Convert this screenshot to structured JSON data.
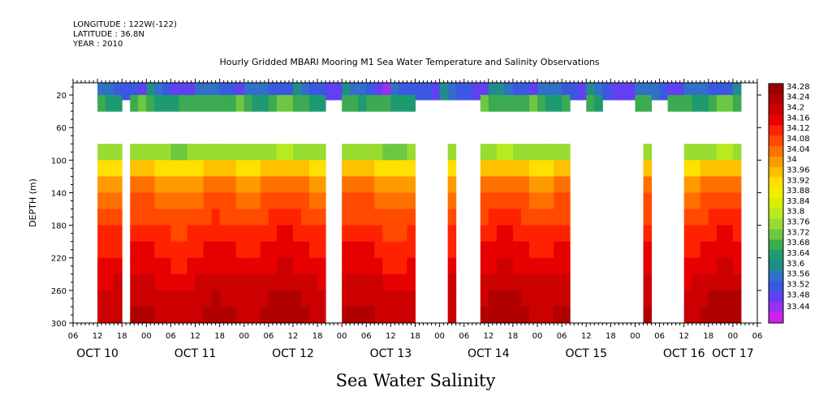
{
  "header": {
    "longitude": "LONGITUDE : 122W(-122)",
    "latitude": "LATITUDE : 36.8N",
    "year": "YEAR : 2010"
  },
  "chart_data": {
    "type": "heatmap",
    "title": "Hourly Gridded MBARI Mooring M1 Sea Water Temperature and Salinity Observations",
    "xlabel": "Sea Water Salinity",
    "ylabel": "DEPTH (m)",
    "x_start_hour": 6,
    "x_end_hour": 174,
    "x_tick_labels": [
      "06",
      "12",
      "18",
      "00",
      "06",
      "12",
      "18",
      "00",
      "06",
      "12",
      "18",
      "00",
      "06",
      "12",
      "18",
      "00",
      "06",
      "12",
      "18",
      "00",
      "06",
      "12",
      "18",
      "00",
      "06",
      "12",
      "18",
      "00",
      "06"
    ],
    "date_labels": [
      {
        "label": "OCT 10",
        "hour": 12
      },
      {
        "label": "OCT 11",
        "hour": 36
      },
      {
        "label": "OCT 12",
        "hour": 60
      },
      {
        "label": "OCT 13",
        "hour": 84
      },
      {
        "label": "OCT 14",
        "hour": 108
      },
      {
        "label": "OCT 15",
        "hour": 132
      },
      {
        "label": "OCT 16",
        "hour": 156
      },
      {
        "label": "OCT 17",
        "hour": 168
      }
    ],
    "y_ticks": [
      20,
      60,
      100,
      140,
      180,
      220,
      260,
      300
    ],
    "ylim": [
      300,
      5
    ],
    "depth_levels": [
      10,
      30,
      90,
      110,
      130,
      150,
      170,
      190,
      210,
      230,
      250,
      270,
      290
    ],
    "column_width_hours": 2,
    "column_hours": [
      13,
      15,
      17,
      19,
      21,
      23,
      25,
      27,
      29,
      31,
      33,
      35,
      37,
      39,
      41,
      43,
      45,
      47,
      49,
      51,
      53,
      55,
      57,
      59,
      61,
      63,
      65,
      67,
      69,
      71,
      73,
      75,
      77,
      79,
      81,
      83,
      85,
      87,
      89,
      91,
      93,
      95,
      97,
      99,
      101,
      103,
      105,
      107,
      109,
      111,
      113,
      115,
      117,
      119,
      121,
      123,
      125,
      127,
      129,
      131,
      133,
      135,
      137,
      139,
      141,
      143,
      145,
      147,
      149,
      151,
      153,
      155,
      157,
      159,
      161,
      163,
      165,
      167,
      169
    ],
    "profile_surface": [
      33.6,
      33.58,
      33.56,
      33.54,
      33.52,
      33.5
    ],
    "profile_shallow": [
      33.7,
      33.68,
      33.67,
      33.69,
      33.71,
      33.73
    ],
    "profile_deep": [
      33.78,
      33.96,
      34.04,
      34.08,
      34.11,
      34.14,
      34.16,
      34.18,
      34.21,
      34.23,
      34.24
    ],
    "colorbar": {
      "labels": [
        "34.28",
        "34.24",
        "34.2",
        "34.16",
        "34.12",
        "34.08",
        "34.04",
        "34",
        "33.96",
        "33.92",
        "33.88",
        "33.84",
        "33.8",
        "33.76",
        "33.72",
        "33.68",
        "33.64",
        "33.6",
        "33.56",
        "33.52",
        "33.48",
        "33.44"
      ],
      "levels": [
        34.28,
        34.24,
        34.2,
        34.16,
        34.12,
        34.08,
        34.04,
        34,
        33.96,
        33.92,
        33.88,
        33.84,
        33.8,
        33.76,
        33.72,
        33.68,
        33.64,
        33.6,
        33.56,
        33.52,
        33.48,
        33.44
      ],
      "colors": [
        "#9b0000",
        "#b00000",
        "#cc0000",
        "#e60000",
        "#ff2200",
        "#ff4a00",
        "#ff7000",
        "#ff9a00",
        "#ffc000",
        "#ffe000",
        "#f0f000",
        "#d8f000",
        "#b8ea20",
        "#98dc30",
        "#6cc840",
        "#3caa50",
        "#1e9a70",
        "#208c8c",
        "#3070c8",
        "#3a58e0",
        "#6040f0",
        "#9a30f0",
        "#d020f0"
      ]
    }
  }
}
